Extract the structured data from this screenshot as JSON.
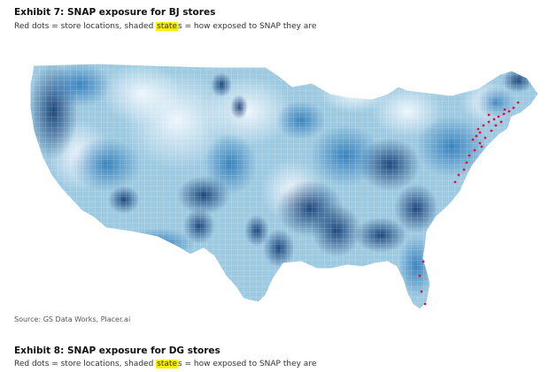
{
  "exhibit_a": {
    "title": "Exhibit 7: SNAP exposure for BJ stores",
    "subtitle_pre": "Red dots = store locations, shaded ",
    "subtitle_hl": "state",
    "subtitle_post": "s = how exposed to SNAP they are"
  },
  "source": "Source: GS Data Works, Placer.ai",
  "exhibit_b": {
    "title": "Exhibit 8: SNAP exposure for DG stores",
    "subtitle_pre": "Red dots = store locations, shaded ",
    "subtitle_hl": "state",
    "subtitle_post": "s = how exposed to SNAP they are"
  },
  "map": {
    "region": "contiguous United States",
    "shading": "county-level SNAP exposure, light to dark blue",
    "colors": {
      "land_light": "#dbe9f6",
      "land_dark": "#08306b",
      "highlight": "#f7f000",
      "store_dot": "#e0133a"
    },
    "store_locations_shown_in": "Northeast corridor (Maine to Virginia) and Florida"
  }
}
